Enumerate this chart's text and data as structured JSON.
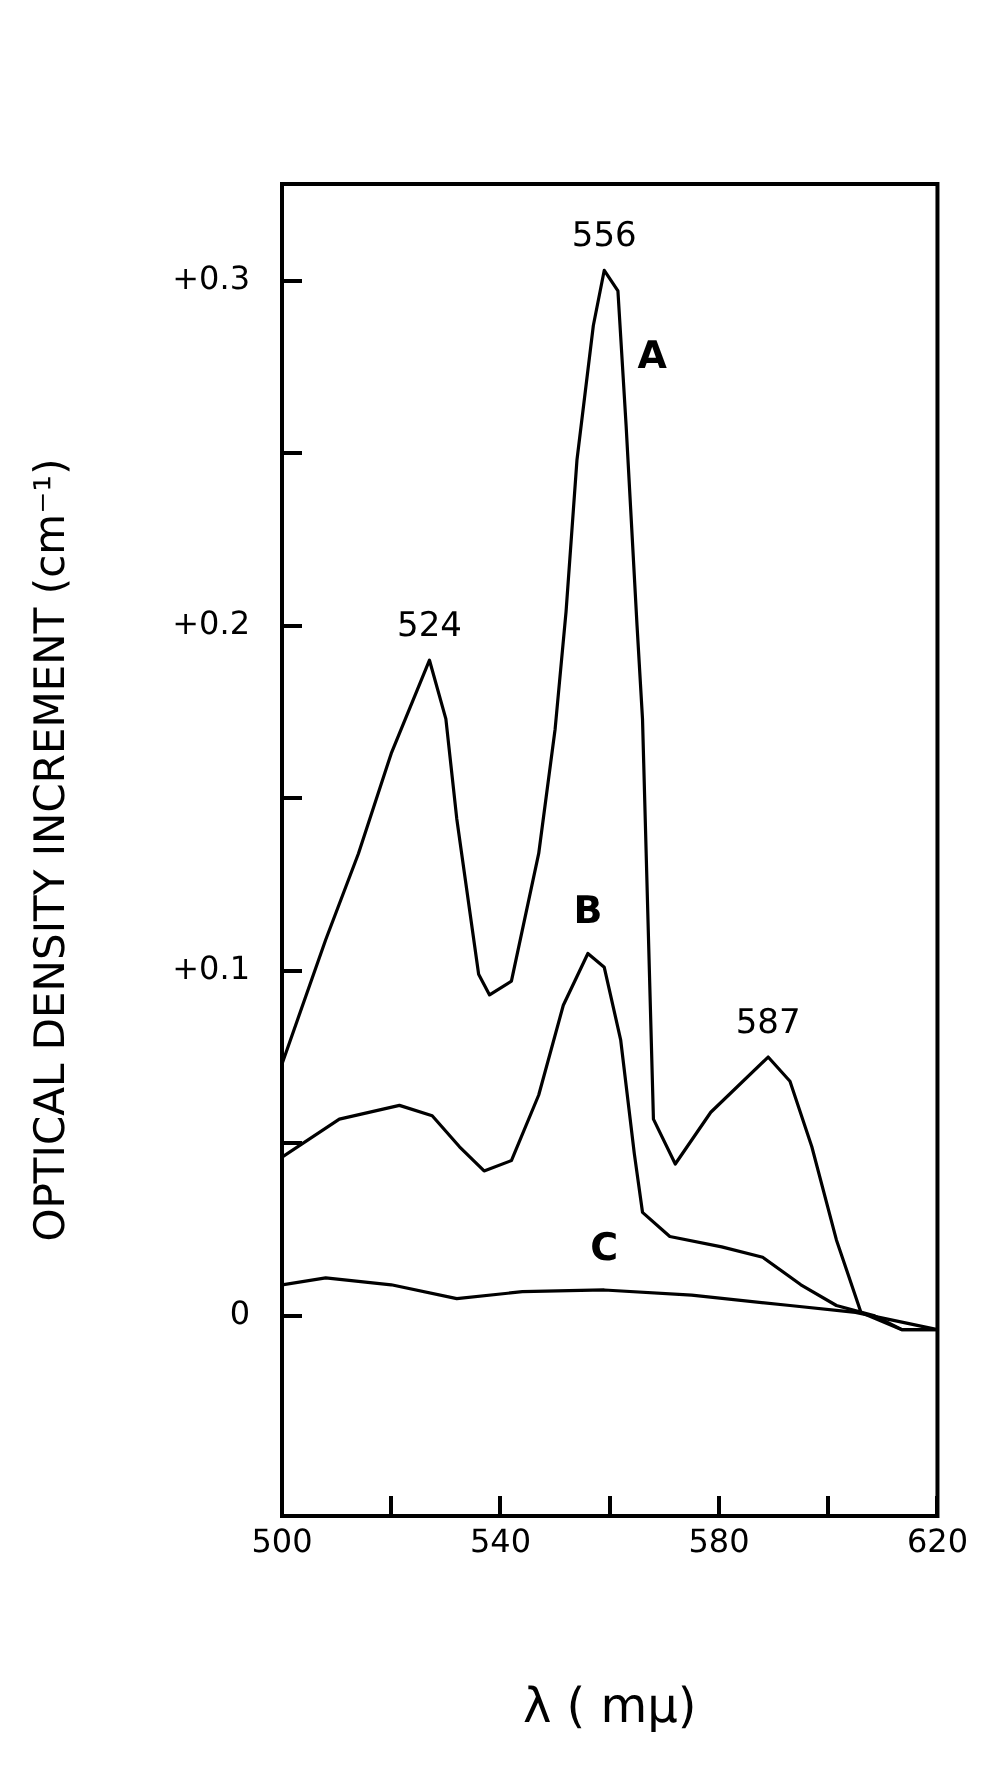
{
  "chart_data": {
    "type": "line",
    "xlabel": "λ ( mμ)",
    "ylabel": "OPTICAL DENSITY INCREMENT (cm⁻¹)",
    "xlim": [
      500,
      620
    ],
    "ylim": [
      -0.058,
      0.328
    ],
    "xticks": [
      500,
      {
        "value": 520,
        "label": null
      },
      540,
      {
        "value": 560,
        "label": null
      },
      580,
      {
        "value": 600,
        "label": null
      },
      620
    ],
    "yticks": [
      {
        "value": 0,
        "label": "0"
      },
      {
        "value": 0.05,
        "label": null
      },
      {
        "value": 0.1,
        "label": "+0.1"
      },
      {
        "value": 0.15,
        "label": null
      },
      {
        "value": 0.2,
        "label": "+0.2"
      },
      {
        "value": 0.25,
        "label": null
      },
      {
        "value": 0.3,
        "label": "+0.3"
      }
    ],
    "grid": false,
    "legend": false,
    "marker": "none",
    "line_style": "solid",
    "series": [
      {
        "name": "A",
        "color": "#000000",
        "x": [
          500,
          508,
          514,
          520,
          527,
          530,
          532,
          536,
          538,
          542,
          547,
          550,
          552,
          554,
          557,
          559,
          561.5,
          563,
          565,
          566,
          567,
          568,
          572,
          578.5,
          589,
          593,
          597,
          601.5,
          606,
          613.5,
          620
        ],
        "values": [
          0.073,
          0.109,
          0.134,
          0.163,
          0.19,
          0.173,
          0.144,
          0.099,
          0.093,
          0.097,
          0.134,
          0.17,
          0.204,
          0.248,
          0.287,
          0.303,
          0.297,
          0.258,
          0.2,
          0.173,
          0.115,
          0.057,
          0.044,
          0.059,
          0.075,
          0.068,
          0.049,
          0.022,
          0.001,
          -0.004,
          -0.004
        ]
      },
      {
        "name": "B",
        "color": "#000000",
        "x": [
          500,
          510.5,
          521.5,
          527.5,
          532.5,
          537,
          542,
          547,
          551.5,
          556,
          559,
          562,
          564.5,
          566,
          571,
          580.5,
          588,
          595,
          601.5,
          608.5,
          613.5,
          620
        ],
        "values": [
          0.046,
          0.057,
          0.061,
          0.058,
          0.049,
          0.042,
          0.045,
          0.064,
          0.09,
          0.105,
          0.101,
          0.08,
          0.047,
          0.03,
          0.023,
          0.02,
          0.017,
          0.009,
          0.003,
          0,
          -0.004,
          -0.004
        ]
      },
      {
        "name": "C",
        "color": "#000000",
        "x": [
          500,
          508,
          520,
          532,
          544,
          559,
          575,
          593,
          605,
          620
        ],
        "values": [
          0.009,
          0.011,
          0.009,
          0.005,
          0.007,
          0.0075,
          0.006,
          0.003,
          0.001,
          -0.004
        ]
      }
    ],
    "annotations": [
      {
        "text": "524",
        "x": 527,
        "y": 0.19
      },
      {
        "text": "556",
        "x": 559,
        "y": 0.303
      },
      {
        "text": "587",
        "x": 589,
        "y": 0.075
      }
    ]
  }
}
